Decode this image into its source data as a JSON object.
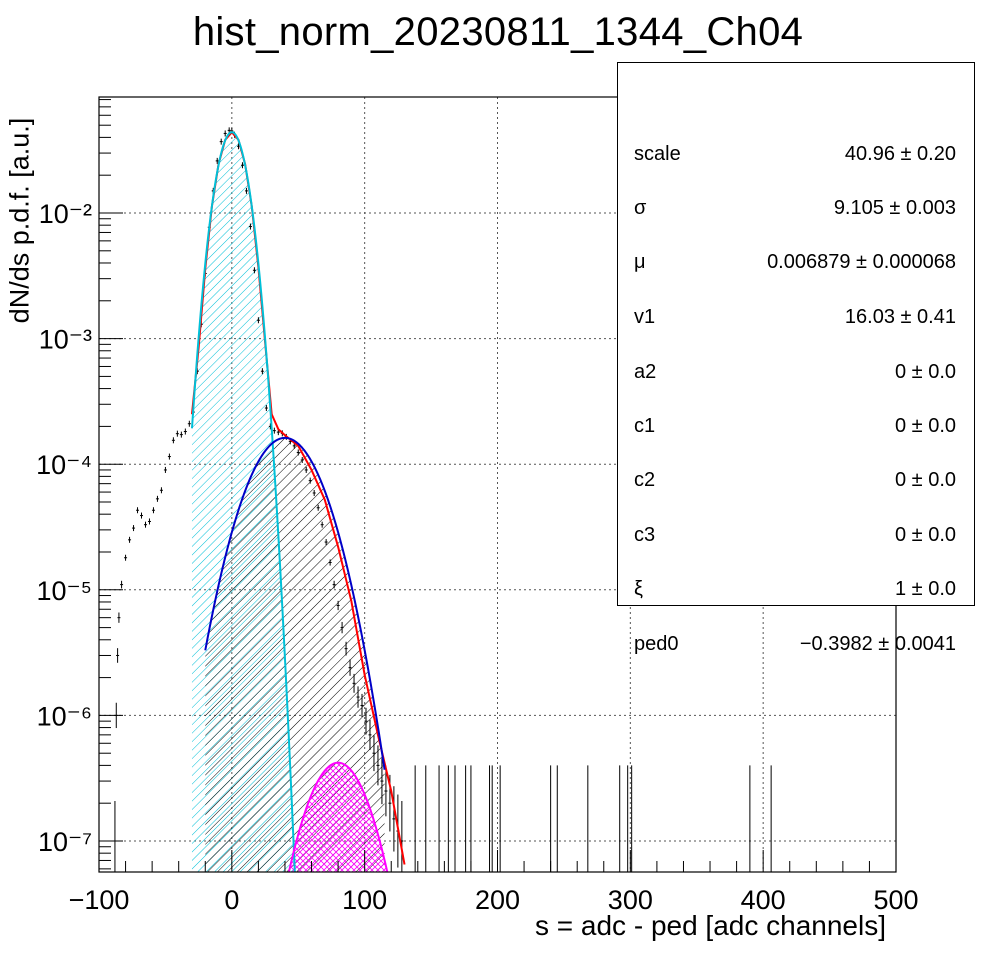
{
  "title": "hist_norm_20230811_1344_Ch04",
  "colors": {
    "data": "#000000",
    "total_fit": "#ff0000",
    "pedestal": "#00c0d8",
    "one_pe": "#0000c8",
    "two_pe": "#ff00ff"
  },
  "stats_box": {
    "rows": [
      {
        "name": "scale",
        "value": "40.96 ± 0.20"
      },
      {
        "name": "σ",
        "value": "9.105 ± 0.003"
      },
      {
        "name": "μ",
        "value": "0.006879 ± 0.000068"
      },
      {
        "name": "v1",
        "value": "16.03 ± 0.41"
      },
      {
        "name": "a2",
        "value": "0 ± 0.0"
      },
      {
        "name": "c1",
        "value": "0 ± 0.0"
      },
      {
        "name": "c2",
        "value": "0 ± 0.0"
      },
      {
        "name": "c3",
        "value": "0 ± 0.0"
      },
      {
        "name": "ξ",
        "value": "1 ± 0.0"
      },
      {
        "name": "ped0",
        "value": "−0.3982 ± 0.0041"
      }
    ]
  },
  "chart_data": {
    "type": "line",
    "title": "hist_norm_20230811_1344_Ch04",
    "xlabel": "s = adc - ped [adc channels]",
    "ylabel": "dN/ds p.d.f. [a.u.]",
    "xlim": [
      -100,
      500
    ],
    "ylim": [
      5.5e-08,
      0.08
    ],
    "yscale": "log",
    "grid": true,
    "x_ticks": [
      "−100",
      "0",
      "100",
      "200",
      "300",
      "400",
      "500"
    ],
    "y_ticks": [
      "10⁻⁷",
      "10⁻⁶",
      "10⁻⁵",
      "10⁻⁴",
      "10⁻³",
      "10⁻²"
    ],
    "series": [
      {
        "key": "data",
        "x": [
          -88,
          -87,
          -86,
          -85,
          -83,
          -80,
          -77,
          -74,
          -71,
          -68,
          -65,
          -62,
          -59,
          -56,
          -53,
          -50,
          -47,
          -44,
          -41,
          -38,
          -35,
          -32,
          -29,
          -26,
          -23,
          -20,
          -17,
          -14,
          -11,
          -8,
          -5,
          -2,
          0,
          2,
          5,
          8,
          11,
          14,
          17,
          20,
          23,
          26,
          29,
          32,
          35,
          38,
          41,
          44,
          47,
          50,
          53,
          56,
          59,
          62,
          65,
          68,
          71,
          74,
          77,
          80,
          83,
          86,
          89,
          92,
          95,
          98,
          101,
          104,
          107,
          110,
          113,
          116,
          119,
          122,
          125,
          128
        ],
        "y": [
          1e-07,
          1e-06,
          3e-06,
          6e-06,
          1.1e-05,
          1.8e-05,
          2.5e-05,
          3.1e-05,
          4.3e-05,
          3.9e-05,
          3.3e-05,
          3.5e-05,
          4.3e-05,
          5.3e-05,
          6.2e-05,
          9e-05,
          0.000115,
          0.000155,
          0.000175,
          0.000172,
          0.000182,
          0.00021,
          0.00026,
          0.00055,
          0.0013,
          0.0033,
          0.0077,
          0.015,
          0.026,
          0.037,
          0.043,
          0.0455,
          0.045,
          0.042,
          0.034,
          0.024,
          0.015,
          0.0078,
          0.0035,
          0.0014,
          0.00055,
          0.00028,
          0.0002,
          0.000185,
          0.00018,
          0.000176,
          0.000165,
          0.000152,
          0.00014,
          0.000124,
          0.000108,
          9e-05,
          7.4e-05,
          5.9e-05,
          4.5e-05,
          3.3e-05,
          2.4e-05,
          1.65e-05,
          1.1e-05,
          7.5e-06,
          5e-06,
          3.4e-06,
          2.4e-06,
          1.8e-06,
          1.4e-06,
          1.2e-06,
          9e-07,
          7e-07,
          5e-07,
          4e-07,
          3e-07,
          2.5e-07,
          2e-07,
          1.5e-07,
          1.2e-07,
          1e-07
        ]
      },
      {
        "key": "total_fit",
        "x": [
          -30,
          -25,
          -20,
          -15,
          -10,
          -5,
          0,
          5,
          10,
          15,
          20,
          25,
          30,
          35,
          40,
          50,
          60,
          70,
          80,
          90,
          100,
          110,
          120,
          130
        ],
        "y": [
          0.00025,
          0.00085,
          0.0036,
          0.0113,
          0.0245,
          0.0382,
          0.044,
          0.0382,
          0.0245,
          0.0113,
          0.0037,
          0.00095,
          0.00025,
          0.00019,
          0.00017,
          0.00014,
          9e-05,
          5.2e-05,
          2.2e-05,
          8.1e-06,
          2.1e-06,
          7e-07,
          2.5e-07,
          6.5e-08
        ]
      },
      {
        "key": "pedestal",
        "name": "",
        "mu": 0,
        "sigma": 9.105,
        "peak": 0.044,
        "xrange": [
          -30,
          50
        ],
        "fill": true
      },
      {
        "key": "one_pe",
        "mu": 40,
        "sigma": 21.5,
        "peak": 0.000162,
        "xrange": [
          -20,
          115
        ],
        "fill": true
      },
      {
        "key": "two_pe",
        "mu": 80,
        "sigma": 18.5,
        "peak": 4.2e-07,
        "xrange": [
          40,
          130
        ],
        "fill": true
      }
    ],
    "isolated_spikes_x": [
      138,
      146,
      156,
      163,
      168,
      176,
      180,
      194,
      196,
      202,
      240,
      245,
      268,
      292,
      298,
      301,
      390,
      406
    ]
  }
}
